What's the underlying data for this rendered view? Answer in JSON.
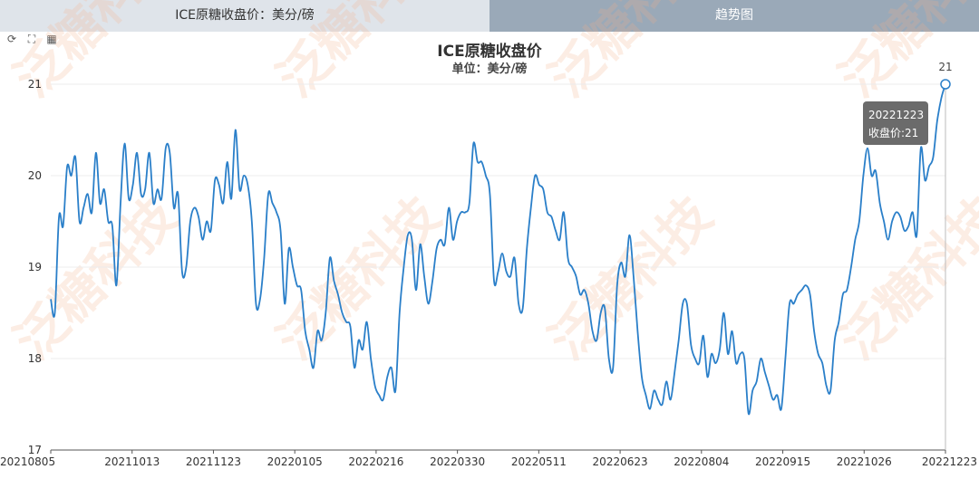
{
  "tabs": [
    {
      "label": "ICE原糖收盘价：美分/磅"
    },
    {
      "label": "趋势图"
    }
  ],
  "toolbar": {
    "icons": [
      "refresh-icon",
      "zoom-icon",
      "data-view-icon"
    ]
  },
  "watermark": "泛糖科技",
  "colors": {
    "line": "#2a7fc9",
    "tab_inactive": "#dfe4ea",
    "tab_active": "#9aa9b8",
    "tooltip_bg": "#6b6b6b"
  },
  "tooltip": {
    "date": "20221223",
    "label": "收盘价:21"
  },
  "end_label": "21",
  "chart_data": {
    "type": "line",
    "title": "ICE原糖收盘价",
    "subtitle": "单位：美分/磅",
    "ylim": [
      17,
      21
    ],
    "y_ticks": [
      "17",
      "18",
      "19",
      "20",
      "21"
    ],
    "x_tick_labels": [
      "20210805",
      "20211013",
      "20211123",
      "20220105",
      "20220216",
      "20220330",
      "20220511",
      "20220623",
      "20220804",
      "20220915",
      "20221026",
      "20221223"
    ],
    "grid": true,
    "series": [
      {
        "values": [
          18.65,
          18.5,
          19.55,
          19.45,
          20.1,
          20.0,
          20.2,
          19.5,
          19.65,
          19.8,
          19.6,
          20.25,
          19.7,
          19.85,
          19.5,
          19.45,
          18.8,
          19.7,
          20.35,
          19.75,
          19.9,
          20.25,
          19.8,
          19.85,
          20.25,
          19.7,
          19.85,
          19.75,
          20.3,
          20.25,
          19.65,
          19.8,
          18.95,
          19.0,
          19.5,
          19.65,
          19.55,
          19.3,
          19.5,
          19.4,
          19.95,
          19.9,
          19.7,
          20.15,
          19.75,
          20.5,
          19.85,
          20.0,
          19.9,
          19.5,
          18.6,
          18.65,
          19.1,
          19.8,
          19.7,
          19.6,
          19.4,
          18.6,
          19.2,
          19.0,
          18.8,
          18.75,
          18.3,
          18.1,
          17.9,
          18.3,
          18.2,
          18.5,
          19.1,
          18.85,
          18.7,
          18.5,
          18.4,
          18.35,
          17.9,
          18.2,
          18.1,
          18.4,
          18.0,
          17.7,
          17.6,
          17.55,
          17.8,
          17.9,
          17.65,
          18.5,
          19.0,
          19.35,
          19.3,
          18.75,
          19.25,
          18.9,
          18.6,
          18.85,
          19.2,
          19.3,
          19.25,
          19.65,
          19.3,
          19.5,
          19.6,
          19.6,
          19.7,
          20.35,
          20.15,
          20.15,
          20.0,
          19.8,
          18.85,
          18.95,
          19.15,
          18.95,
          18.9,
          19.1,
          18.6,
          18.55,
          19.2,
          19.65,
          20.0,
          19.9,
          19.85,
          19.6,
          19.55,
          19.4,
          19.3,
          19.6,
          19.1,
          19.0,
          18.9,
          18.7,
          18.75,
          18.6,
          18.3,
          18.2,
          18.5,
          18.55,
          18.0,
          17.9,
          18.8,
          19.05,
          18.9,
          19.35,
          18.9,
          18.3,
          17.8,
          17.6,
          17.45,
          17.65,
          17.55,
          17.5,
          17.75,
          17.55,
          17.85,
          18.2,
          18.6,
          18.6,
          18.15,
          18.0,
          17.95,
          18.25,
          17.8,
          18.05,
          17.95,
          18.1,
          18.5,
          18.05,
          18.3,
          17.95,
          18.05,
          18.0,
          17.4,
          17.65,
          17.75,
          18.0,
          17.85,
          17.7,
          17.55,
          17.6,
          17.45,
          18.0,
          18.6,
          18.6,
          18.7,
          18.75,
          18.8,
          18.7,
          18.3,
          18.05,
          17.95,
          17.7,
          17.65,
          18.2,
          18.4,
          18.7,
          18.75,
          19.0,
          19.3,
          19.5,
          20.0,
          20.3,
          20.0,
          20.05,
          19.7,
          19.5,
          19.3,
          19.5,
          19.6,
          19.55,
          19.4,
          19.45,
          19.6,
          19.35,
          20.3,
          19.95,
          20.1,
          20.2,
          20.6,
          20.85,
          21.0
        ]
      }
    ]
  }
}
